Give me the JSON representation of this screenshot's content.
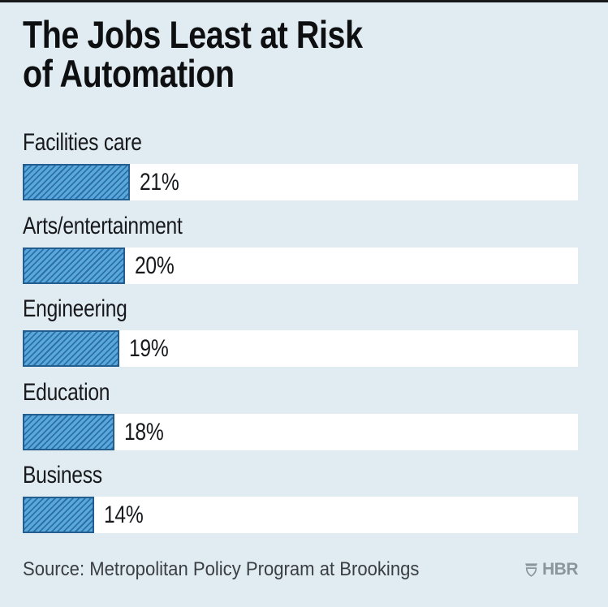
{
  "page": {
    "background": "#e1ecf2",
    "top_border_color": "#17181a"
  },
  "title_lines": [
    "The Jobs Least at Risk",
    "of Automation"
  ],
  "chart_data": {
    "type": "bar",
    "orientation": "horizontal",
    "title": "The Jobs Least at Risk of Automation",
    "categories": [
      "Facilities care",
      "Arts/entertainment",
      "Engineering",
      "Education",
      "Business"
    ],
    "values": [
      21,
      20,
      19,
      18,
      14
    ],
    "value_labels": [
      "21%",
      "20%",
      "19%",
      "18%",
      "14%"
    ],
    "unit": "%",
    "xlabel": "",
    "ylabel": "",
    "xlim": [
      0,
      109
    ],
    "grid": false,
    "legend": false,
    "bar_fill": "#58a8dc",
    "bar_hatch_color": "#2f6fa8",
    "bar_border_color": "#235e8e",
    "track_color": "#ffffff",
    "hatch_style": "diagonal-forward-slash"
  },
  "footer": {
    "source": "Source: Metropolitan Policy Program at Brookings",
    "brand": "HBR",
    "brand_icon": "hbr-shield-icon",
    "brand_color": "#8c959b"
  }
}
